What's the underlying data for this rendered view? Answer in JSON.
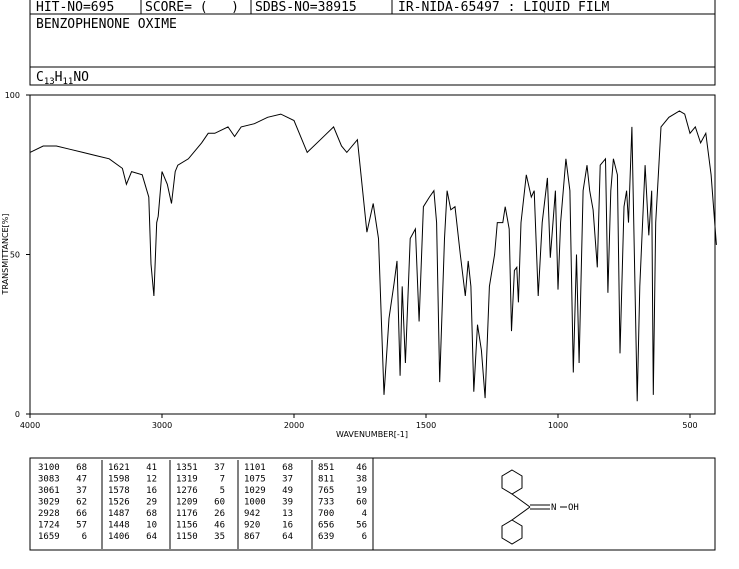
{
  "header": {
    "hit_no": "HIT-NO=695",
    "score": "SCORE= (   )",
    "sdbs_no": "SDBS-NO=38915",
    "method": "IR-NIDA-65497 : LIQUID FILM",
    "compound": "BENZOPHENONE OXIME",
    "formula": [
      "C",
      "13",
      "H",
      "11",
      "NO"
    ]
  },
  "chart_data": {
    "type": "line",
    "xlabel": "WAVENUMBER[-1]",
    "ylabel": "TRANSMITTANCE[%]",
    "xlim": [
      4000,
      400
    ],
    "ylim": [
      0,
      100
    ],
    "xticks": [
      4000,
      3000,
      2000,
      1500,
      1000,
      500
    ],
    "yticks": [
      0,
      50,
      100
    ],
    "series": [
      {
        "color": "#000000",
        "x": [
          4000,
          3900,
          3800,
          3700,
          3600,
          3500,
          3400,
          3300,
          3270,
          3230,
          3150,
          3100,
          3083,
          3061,
          3040,
          3029,
          3000,
          2960,
          2928,
          2900,
          2880,
          2800,
          2700,
          2650,
          2600,
          2500,
          2450,
          2400,
          2300,
          2200,
          2100,
          2050,
          2000,
          1950,
          1900,
          1850,
          1820,
          1800,
          1760,
          1724,
          1700,
          1680,
          1659,
          1640,
          1621,
          1610,
          1598,
          1590,
          1578,
          1560,
          1540,
          1526,
          1510,
          1487,
          1470,
          1460,
          1448,
          1430,
          1420,
          1406,
          1390,
          1370,
          1351,
          1340,
          1330,
          1319,
          1305,
          1290,
          1276,
          1260,
          1240,
          1230,
          1209,
          1200,
          1185,
          1176,
          1165,
          1156,
          1150,
          1140,
          1120,
          1101,
          1090,
          1075,
          1060,
          1040,
          1029,
          1010,
          1000,
          990,
          970,
          955,
          942,
          930,
          920,
          905,
          890,
          880,
          867,
          851,
          840,
          820,
          811,
          800,
          790,
          775,
          765,
          750,
          740,
          733,
          720,
          700,
          690,
          670,
          656,
          645,
          639,
          630,
          610,
          580,
          540,
          520,
          500,
          480,
          460,
          440,
          420,
          400
        ],
        "values": [
          82,
          84,
          84,
          83,
          82,
          81,
          80,
          77,
          72,
          76,
          75,
          68,
          47,
          37,
          60,
          62,
          76,
          72,
          66,
          76,
          78,
          80,
          85,
          88,
          88,
          90,
          87,
          90,
          91,
          93,
          94,
          93,
          92,
          82,
          86,
          90,
          84,
          82,
          86,
          57,
          66,
          55,
          6,
          30,
          41,
          48,
          12,
          40,
          16,
          55,
          58,
          29,
          65,
          68,
          70,
          60,
          10,
          55,
          70,
          64,
          65,
          50,
          37,
          48,
          40,
          7,
          28,
          20,
          5,
          40,
          50,
          60,
          60,
          65,
          58,
          26,
          45,
          46,
          35,
          60,
          75,
          68,
          70,
          37,
          60,
          74,
          49,
          70,
          39,
          60,
          80,
          70,
          13,
          50,
          16,
          70,
          78,
          70,
          64,
          46,
          78,
          80,
          38,
          70,
          80,
          75,
          19,
          65,
          70,
          60,
          90,
          4,
          40,
          78,
          56,
          70,
          6,
          60,
          90,
          93,
          95,
          94,
          88,
          90,
          85,
          88,
          75,
          53
        ]
      }
    ]
  },
  "peak_table": [
    [
      [
        3100,
        68
      ],
      [
        3083,
        47
      ],
      [
        3061,
        37
      ],
      [
        3029,
        62
      ],
      [
        2928,
        66
      ],
      [
        1724,
        57
      ],
      [
        1659,
        6
      ]
    ],
    [
      [
        1621,
        41
      ],
      [
        1598,
        12
      ],
      [
        1578,
        16
      ],
      [
        1526,
        29
      ],
      [
        1487,
        68
      ],
      [
        1448,
        10
      ],
      [
        1406,
        64
      ]
    ],
    [
      [
        1351,
        37
      ],
      [
        1319,
        7
      ],
      [
        1276,
        5
      ],
      [
        1209,
        60
      ],
      [
        1176,
        26
      ],
      [
        1156,
        46
      ],
      [
        1150,
        35
      ]
    ],
    [
      [
        1101,
        68
      ],
      [
        1075,
        37
      ],
      [
        1029,
        49
      ],
      [
        1000,
        39
      ],
      [
        942,
        13
      ],
      [
        920,
        16
      ],
      [
        867,
        64
      ]
    ],
    [
      [
        851,
        46
      ],
      [
        811,
        38
      ],
      [
        765,
        19
      ],
      [
        733,
        60
      ],
      [
        700,
        4
      ],
      [
        656,
        56
      ],
      [
        639,
        6
      ]
    ]
  ],
  "structure": {
    "labels": [
      "N",
      "OH"
    ]
  }
}
